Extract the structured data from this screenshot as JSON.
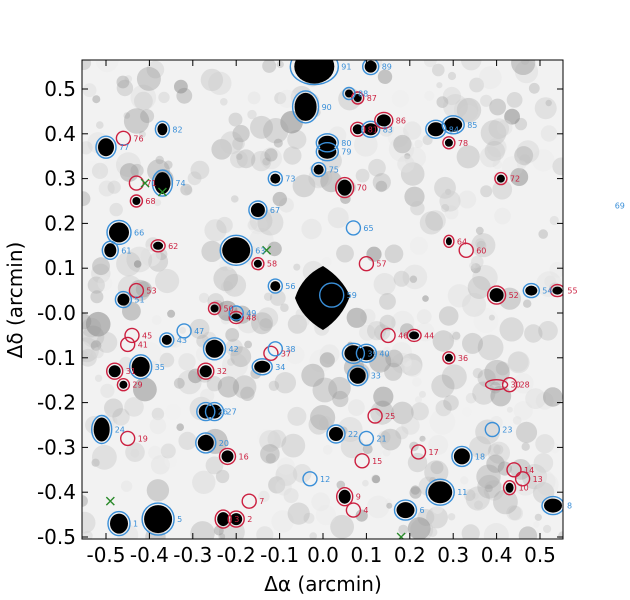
{
  "chart_data": {
    "type": "scatter",
    "title": "",
    "xlabel": "Δα (arcmin)",
    "ylabel": "Δδ (arcmin)",
    "xlim": [
      -0.5,
      0.58
    ],
    "ylim": [
      -0.5,
      0.58
    ],
    "xticks": [
      -0.5,
      -0.4,
      -0.3,
      -0.2,
      -0.1,
      0.0,
      0.1,
      0.2,
      0.3,
      0.4,
      0.5
    ],
    "xtick_labels": [
      "-0.5",
      "-0.4",
      "-0.3",
      "-0.2",
      "-0.1",
      "0.0",
      "0.1",
      "0.2",
      "0.3",
      "0.4",
      "0.5"
    ],
    "yticks": [
      -0.5,
      -0.4,
      -0.3,
      -0.2,
      -0.1,
      0.0,
      0.1,
      0.2,
      0.3,
      0.4,
      0.5
    ],
    "ytick_labels": [
      "-0.5",
      "-0.4",
      "-0.3",
      "-0.2",
      "-0.1",
      "-0.0",
      "0.1",
      "0.2",
      "0.3",
      "0.4",
      "0.5"
    ],
    "grid": false,
    "colors": {
      "blue": "#3a8fd8",
      "red": "#cc2040",
      "green": "#2a8a2a",
      "image": "#000000"
    },
    "sources": [
      {
        "id": "1",
        "x": -0.47,
        "y": -0.47,
        "color": "blue"
      },
      {
        "id": "2",
        "x": -0.2,
        "y": -0.46,
        "color": "red"
      },
      {
        "id": "3",
        "x": -0.23,
        "y": -0.46,
        "color": "red"
      },
      {
        "id": "4",
        "x": 0.07,
        "y": -0.44,
        "color": "red"
      },
      {
        "id": "5",
        "x": -0.38,
        "y": -0.46,
        "color": "blue"
      },
      {
        "id": "6",
        "x": 0.19,
        "y": -0.44,
        "color": "blue"
      },
      {
        "id": "7",
        "x": -0.17,
        "y": -0.42,
        "color": "red"
      },
      {
        "id": "8",
        "x": 0.53,
        "y": -0.43,
        "color": "blue"
      },
      {
        "id": "9",
        "x": 0.05,
        "y": -0.41,
        "color": "red"
      },
      {
        "id": "10",
        "x": 0.43,
        "y": -0.39,
        "color": "red"
      },
      {
        "id": "11",
        "x": 0.27,
        "y": -0.4,
        "color": "blue"
      },
      {
        "id": "12",
        "x": -0.03,
        "y": -0.37,
        "color": "blue"
      },
      {
        "id": "13",
        "x": 0.46,
        "y": -0.37,
        "color": "red"
      },
      {
        "id": "14",
        "x": 0.44,
        "y": -0.35,
        "color": "red"
      },
      {
        "id": "15",
        "x": 0.09,
        "y": -0.33,
        "color": "red"
      },
      {
        "id": "16",
        "x": -0.22,
        "y": -0.32,
        "color": "red"
      },
      {
        "id": "17",
        "x": 0.22,
        "y": -0.31,
        "color": "red"
      },
      {
        "id": "18",
        "x": 0.32,
        "y": -0.32,
        "color": "blue"
      },
      {
        "id": "19",
        "x": -0.45,
        "y": -0.28,
        "color": "red"
      },
      {
        "id": "20",
        "x": -0.27,
        "y": -0.29,
        "color": "blue"
      },
      {
        "id": "21",
        "x": 0.1,
        "y": -0.28,
        "color": "blue"
      },
      {
        "id": "22",
        "x": 0.03,
        "y": -0.27,
        "color": "blue"
      },
      {
        "id": "23",
        "x": 0.39,
        "y": -0.26,
        "color": "blue"
      },
      {
        "id": "24",
        "x": -0.51,
        "y": -0.26,
        "color": "blue"
      },
      {
        "id": "25",
        "x": 0.12,
        "y": -0.23,
        "color": "red"
      },
      {
        "id": "26",
        "x": -0.27,
        "y": -0.22,
        "color": "blue"
      },
      {
        "id": "27",
        "x": -0.25,
        "y": -0.22,
        "color": "blue"
      },
      {
        "id": "28",
        "x": 0.43,
        "y": -0.16,
        "color": "red"
      },
      {
        "id": "29",
        "x": -0.46,
        "y": -0.16,
        "color": "red"
      },
      {
        "id": "30",
        "x": 0.4,
        "y": -0.16,
        "color": "red"
      },
      {
        "id": "31",
        "x": -0.48,
        "y": -0.13,
        "color": "red"
      },
      {
        "id": "32",
        "x": -0.27,
        "y": -0.13,
        "color": "red"
      },
      {
        "id": "33",
        "x": 0.08,
        "y": -0.14,
        "color": "blue"
      },
      {
        "id": "34",
        "x": -0.14,
        "y": -0.12,
        "color": "blue"
      },
      {
        "id": "35",
        "x": -0.42,
        "y": -0.12,
        "color": "blue"
      },
      {
        "id": "36",
        "x": 0.29,
        "y": -0.1,
        "color": "red"
      },
      {
        "id": "37",
        "x": -0.12,
        "y": -0.09,
        "color": "red"
      },
      {
        "id": "38",
        "x": -0.11,
        "y": -0.08,
        "color": "blue"
      },
      {
        "id": "39",
        "x": 0.07,
        "y": -0.09,
        "color": "blue"
      },
      {
        "id": "40",
        "x": 0.1,
        "y": -0.09,
        "color": "blue"
      },
      {
        "id": "41",
        "x": -0.45,
        "y": -0.07,
        "color": "red"
      },
      {
        "id": "42",
        "x": -0.25,
        "y": -0.08,
        "color": "blue"
      },
      {
        "id": "43",
        "x": -0.36,
        "y": -0.06,
        "color": "blue"
      },
      {
        "id": "44",
        "x": 0.21,
        "y": -0.05,
        "color": "red"
      },
      {
        "id": "45",
        "x": -0.44,
        "y": -0.05,
        "color": "red"
      },
      {
        "id": "46",
        "x": 0.15,
        "y": -0.05,
        "color": "red"
      },
      {
        "id": "47",
        "x": -0.32,
        "y": -0.04,
        "color": "blue"
      },
      {
        "id": "48",
        "x": -0.2,
        "y": -0.01,
        "color": "red"
      },
      {
        "id": "49",
        "x": -0.2,
        "y": 0.0,
        "color": "blue"
      },
      {
        "id": "50",
        "x": -0.25,
        "y": 0.01,
        "color": "red"
      },
      {
        "id": "51",
        "x": -0.46,
        "y": 0.03,
        "color": "blue"
      },
      {
        "id": "52",
        "x": 0.4,
        "y": 0.04,
        "color": "red"
      },
      {
        "id": "53",
        "x": -0.43,
        "y": 0.05,
        "color": "red"
      },
      {
        "id": "54",
        "x": 0.48,
        "y": 0.05,
        "color": "blue"
      },
      {
        "id": "55",
        "x": 0.54,
        "y": 0.05,
        "color": "red"
      },
      {
        "id": "56",
        "x": -0.11,
        "y": 0.06,
        "color": "blue"
      },
      {
        "id": "57",
        "x": 0.1,
        "y": 0.11,
        "color": "red"
      },
      {
        "id": "58",
        "x": -0.15,
        "y": 0.11,
        "color": "red"
      },
      {
        "id": "59",
        "x": 0.02,
        "y": 0.04,
        "color": "blue"
      },
      {
        "id": "60",
        "x": 0.33,
        "y": 0.14,
        "color": "red"
      },
      {
        "id": "61",
        "x": -0.49,
        "y": 0.14,
        "color": "blue"
      },
      {
        "id": "62",
        "x": -0.38,
        "y": 0.15,
        "color": "red"
      },
      {
        "id": "63",
        "x": -0.2,
        "y": 0.14,
        "color": "blue"
      },
      {
        "id": "64",
        "x": 0.29,
        "y": 0.16,
        "color": "red"
      },
      {
        "id": "65",
        "x": 0.07,
        "y": 0.19,
        "color": "blue"
      },
      {
        "id": "66",
        "x": -0.47,
        "y": 0.18,
        "color": "blue"
      },
      {
        "id": "67",
        "x": -0.15,
        "y": 0.23,
        "color": "blue"
      },
      {
        "id": "68",
        "x": -0.43,
        "y": 0.25,
        "color": "red"
      },
      {
        "id": "69",
        "x": 0.61,
        "y": 0.24,
        "color": "blue"
      },
      {
        "id": "70",
        "x": 0.05,
        "y": 0.28,
        "color": "red"
      },
      {
        "id": "71",
        "x": -0.43,
        "y": 0.29,
        "color": "red"
      },
      {
        "id": "72",
        "x": 0.41,
        "y": 0.3,
        "color": "red"
      },
      {
        "id": "73",
        "x": -0.11,
        "y": 0.3,
        "color": "blue"
      },
      {
        "id": "74",
        "x": -0.37,
        "y": 0.29,
        "color": "blue"
      },
      {
        "id": "75",
        "x": -0.01,
        "y": 0.32,
        "color": "blue"
      },
      {
        "id": "76",
        "x": -0.46,
        "y": 0.39,
        "color": "red"
      },
      {
        "id": "77",
        "x": -0.5,
        "y": 0.37,
        "color": "blue"
      },
      {
        "id": "78",
        "x": 0.29,
        "y": 0.38,
        "color": "red"
      },
      {
        "id": "79",
        "x": 0.01,
        "y": 0.36,
        "color": "blue"
      },
      {
        "id": "80",
        "x": 0.01,
        "y": 0.38,
        "color": "blue"
      },
      {
        "id": "81",
        "x": 0.08,
        "y": 0.41,
        "color": "red"
      },
      {
        "id": "82",
        "x": -0.37,
        "y": 0.41,
        "color": "blue"
      },
      {
        "id": "83",
        "x": 0.11,
        "y": 0.41,
        "color": "blue"
      },
      {
        "id": "84",
        "x": 0.26,
        "y": 0.41,
        "color": "blue"
      },
      {
        "id": "85",
        "x": 0.3,
        "y": 0.42,
        "color": "blue"
      },
      {
        "id": "86",
        "x": 0.14,
        "y": 0.43,
        "color": "red"
      },
      {
        "id": "87",
        "x": 0.08,
        "y": 0.48,
        "color": "red"
      },
      {
        "id": "88",
        "x": 0.06,
        "y": 0.49,
        "color": "blue"
      },
      {
        "id": "89",
        "x": 0.11,
        "y": 0.55,
        "color": "blue"
      },
      {
        "id": "90",
        "x": -0.04,
        "y": 0.46,
        "color": "blue"
      },
      {
        "id": "91",
        "x": -0.02,
        "y": 0.55,
        "color": "blue"
      }
    ]
  }
}
